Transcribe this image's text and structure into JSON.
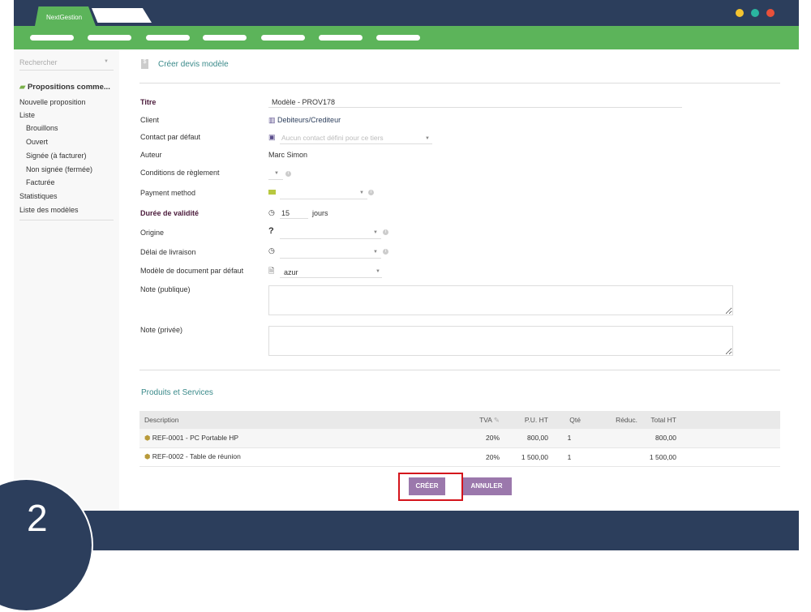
{
  "app": {
    "tab_label": "NextGestion",
    "window_dots": [
      "#f4c430",
      "#2ab5a0",
      "#e8503a"
    ]
  },
  "sidebar": {
    "search_placeholder": "Rechercher",
    "section_title": "Propositions comme...",
    "items": [
      {
        "label": "Nouvelle proposition"
      },
      {
        "label": "Liste"
      },
      {
        "label": "Brouillons"
      },
      {
        "label": "Ouvert"
      },
      {
        "label": "Signée (à facturer)"
      },
      {
        "label": "Non signée (fermée)"
      },
      {
        "label": "Facturée"
      },
      {
        "label": "Statistiques"
      },
      {
        "label": "Liste des modèles"
      }
    ]
  },
  "main": {
    "title": "Créer devis modèle",
    "form": {
      "titre_label": "Titre",
      "titre_value": "Modèle - PROV178",
      "client_label": "Client",
      "client_value": "Debiteurs/Crediteur",
      "contact_label": "Contact par défaut",
      "contact_placeholder": "Aucun contact défini pour ce tiers",
      "auteur_label": "Auteur",
      "auteur_value": "Marc Simon",
      "conditions_label": "Conditions de règlement",
      "payment_label": "Payment method",
      "duree_label": "Durée de validité",
      "duree_value": "15",
      "duree_unit": "jours",
      "origine_label": "Origine",
      "delai_label": "Délai de livraison",
      "modele_label": "Modèle de document par défaut",
      "modele_value": "azur",
      "note_pub_label": "Note (publique)",
      "note_priv_label": "Note (privée)"
    },
    "products": {
      "title": "Produits et Services",
      "headers": [
        "Description",
        "TVA",
        "P.U. HT",
        "Qté",
        "Réduc.",
        "Total HT"
      ],
      "rows": [
        {
          "ref": "REF-0001",
          "name": " - PC Portable HP",
          "tva": "20%",
          "pu": "800,00",
          "qty": "1",
          "reduc": "",
          "total": "800,00"
        },
        {
          "ref": "REF-0002",
          "name": " - Table de réunion",
          "tva": "20%",
          "pu": "1 500,00",
          "qty": "1",
          "reduc": "",
          "total": "1 500,00"
        }
      ]
    },
    "buttons": {
      "create": "CRÉER",
      "cancel": "ANNULER"
    }
  },
  "step_number": "2"
}
